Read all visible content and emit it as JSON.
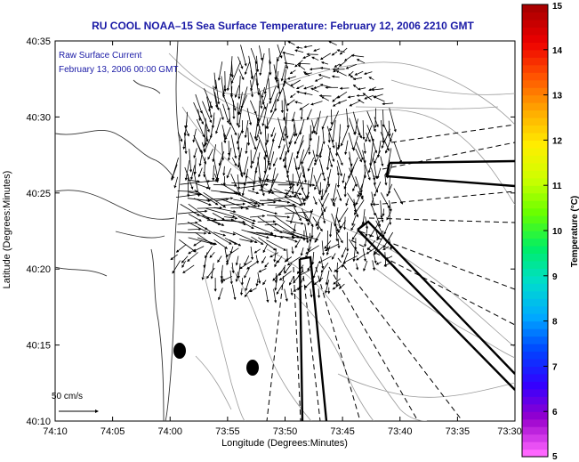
{
  "title": "RU COOL  NOAA–15  Sea Surface Temperature:  February 12, 2006 2210 GMT",
  "inset": {
    "line1": "Raw Surface Current",
    "line2": "February 13, 2006 00:00 GMT"
  },
  "axes": {
    "xlabel": "Longitude (Degrees:Minutes)",
    "ylabel": "Latitude (Degrees:Minutes)",
    "xticks": [
      "74:10",
      "74:05",
      "74:00",
      "73:55",
      "73:50",
      "73:45",
      "73:40",
      "73:35",
      "73:30"
    ],
    "yticks": [
      "40:35",
      "40:30",
      "40:25",
      "40:20",
      "40:15",
      "40:10"
    ]
  },
  "colorbar": {
    "label": "Temperature (°C)",
    "ticks": [
      "15",
      "14",
      "13",
      "12",
      "11",
      "10",
      "9",
      "8",
      "7",
      "6",
      "5"
    ],
    "min": 5,
    "max": 15,
    "colors": [
      "#ff66ff",
      "#9900cc",
      "#3300ff",
      "#0044ff",
      "#00aaff",
      "#00ddcc",
      "#00ee66",
      "#66ff00",
      "#ccff00",
      "#ffee00",
      "#ffaa00",
      "#ff5500",
      "#ee0000",
      "#aa0000"
    ]
  },
  "scale": {
    "label": "50 cm/s"
  },
  "chart_data": {
    "type": "vector-field",
    "x_range": [
      "74:10",
      "73:30"
    ],
    "y_range": [
      "40:10",
      "40:35"
    ]
  }
}
